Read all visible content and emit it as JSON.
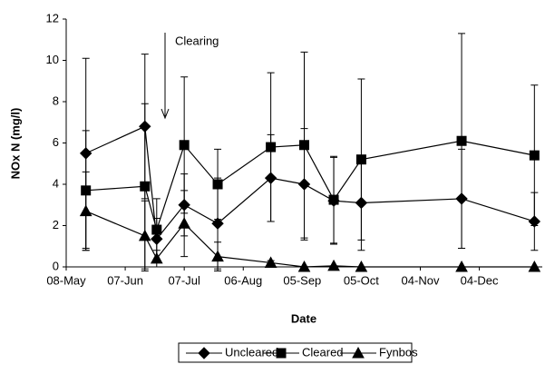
{
  "chart_data": {
    "type": "line",
    "xlabel": "Date",
    "ylabel": "NOx N (mg/l)",
    "annotation": "Clearing",
    "x": [
      10,
      40,
      46,
      60,
      77,
      104,
      121,
      136,
      150,
      201,
      238
    ],
    "xlim": [
      0,
      242
    ],
    "xticks": [
      {
        "value": 0,
        "label": "08-May"
      },
      {
        "value": 30,
        "label": "07-Jun"
      },
      {
        "value": 60,
        "label": "07-Jul"
      },
      {
        "value": 90,
        "label": "06-Aug"
      },
      {
        "value": 120,
        "label": "05-Sep"
      },
      {
        "value": 150,
        "label": "05-Oct"
      },
      {
        "value": 180,
        "label": "04-Nov"
      },
      {
        "value": 210,
        "label": "04-Dec"
      }
    ],
    "ylim": [
      0,
      12
    ],
    "yticks": [
      0,
      2,
      4,
      6,
      8,
      10,
      12
    ],
    "series": [
      {
        "name": "Uncleared",
        "color": "#000000",
        "marker": "diamond",
        "values": [
          5.5,
          6.8,
          1.35,
          3.0,
          2.1,
          4.3,
          4.0,
          3.2,
          3.1,
          3.3,
          2.2
        ],
        "error": [
          4.6,
          3.5,
          1.0,
          1.5,
          2.2,
          2.1,
          2.7,
          2.1,
          2.3,
          2.4,
          1.4
        ]
      },
      {
        "name": "Cleared",
        "color": "#000000",
        "marker": "square",
        "values": [
          3.7,
          3.9,
          1.8,
          5.9,
          4.0,
          5.8,
          5.9,
          3.25,
          5.2,
          6.1,
          5.4
        ],
        "error": [
          2.9,
          4.0,
          1.5,
          3.3,
          1.7,
          3.6,
          4.5,
          2.1,
          3.9,
          5.2,
          3.4
        ]
      },
      {
        "name": "Fynbos",
        "color": "#000000",
        "marker": "triangle",
        "values": [
          2.7,
          1.5,
          0.4,
          2.1,
          0.5,
          0.2,
          0,
          0.05,
          0,
          0,
          0
        ],
        "error": [
          1.9,
          1.7,
          0.4,
          1.6,
          0.7,
          0.1,
          0,
          0,
          0,
          0,
          0
        ]
      }
    ]
  }
}
